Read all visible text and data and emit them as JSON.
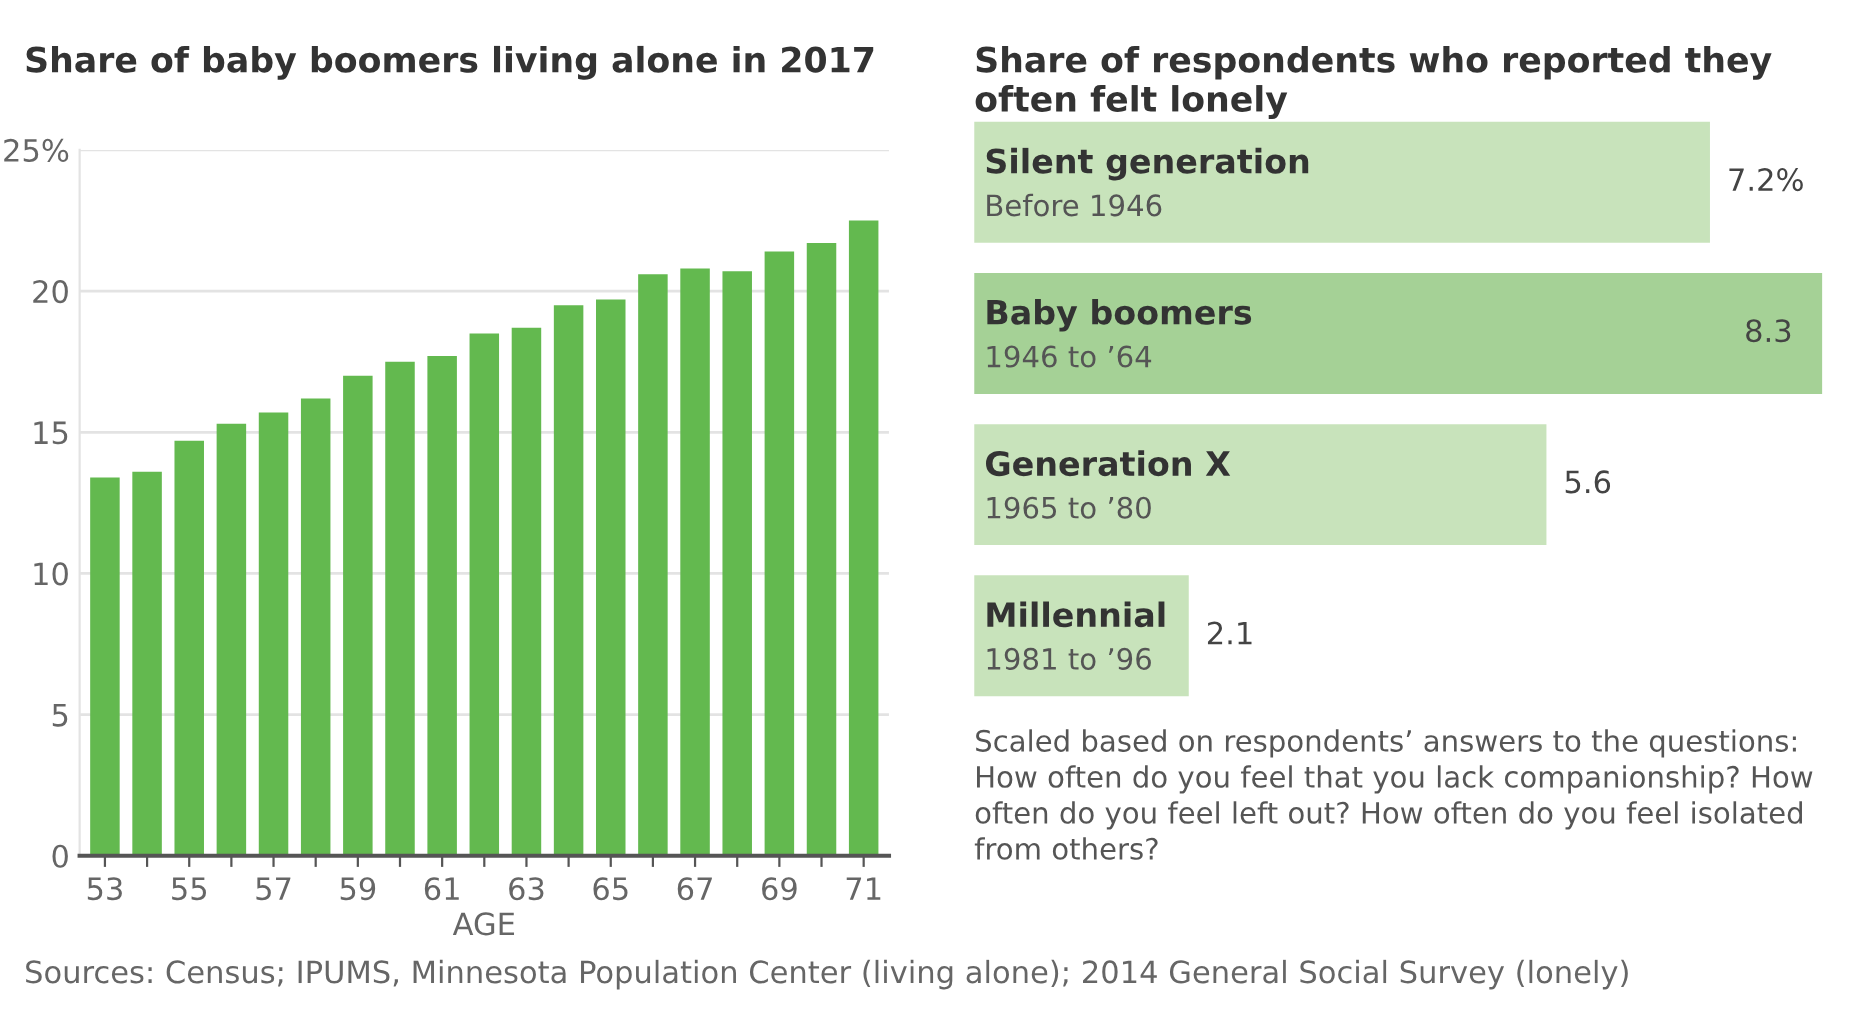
{
  "chart_data": [
    {
      "type": "bar",
      "title": "Share of baby boomers living alone in 2017",
      "xlabel": "AGE",
      "categories": [
        "53",
        null,
        "55",
        null,
        "57",
        null,
        "59",
        null,
        "61",
        null,
        "63",
        null,
        "65",
        null,
        "67",
        null,
        "69",
        null,
        "71"
      ],
      "values": [
        13.4,
        13.6,
        14.7,
        15.3,
        15.7,
        16.2,
        17.0,
        17.5,
        17.7,
        18.5,
        18.7,
        19.5,
        19.7,
        20.6,
        20.8,
        20.7,
        21.4,
        21.7,
        22.5
      ],
      "color": "#63b94f",
      "ylim": [
        0,
        25
      ],
      "yticks": [
        0,
        5,
        10,
        15,
        20,
        {
          "value": 25,
          "label": "25%"
        }
      ],
      "grid": "y",
      "annotations": [
        "Sources: Census; IPUMS, Minnesota Population Center (living alone); 2014 General Social Survey (lonely)"
      ]
    },
    {
      "type": "bar",
      "orientation": "horizontal",
      "title": "Share of respondents who reported they often felt lonely",
      "categories": [
        "Silent generation\nBefore 1946",
        "Baby boomers\n1946 to ’64",
        "Generation X\n1965 to ’80",
        "Millennial\n1981 to ’96"
      ],
      "values": [
        7.2,
        8.3,
        5.6,
        2.1
      ],
      "value_labels": [
        "7.2%",
        "8.3",
        "5.6",
        "2.1"
      ],
      "colors": [
        "#c8e3bb",
        "#a5d196",
        "#c8e3bb",
        "#c8e3bb"
      ],
      "annotations": [
        "Scaled based on respondents’ answers to the questions: How often do you feel that you lack companionship? How often do you feel left out? How often do you feel isolated from others?"
      ]
    }
  ]
}
